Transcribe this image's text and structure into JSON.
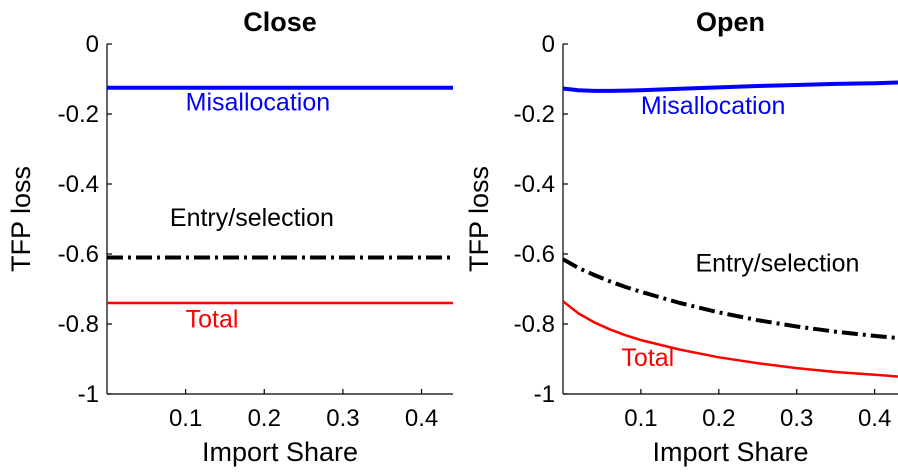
{
  "chart_data": [
    {
      "type": "line",
      "title": "Close",
      "xlabel": "Import Share",
      "ylabel": "TFP loss",
      "xlim": [
        0,
        0.44
      ],
      "ylim": [
        -1,
        0
      ],
      "x_ticks": [
        "0.1",
        "0.2",
        "0.3",
        "0.4"
      ],
      "y_ticks": [
        "0",
        "-0.2",
        "-0.4",
        "-0.6",
        "-0.8",
        "-1"
      ],
      "grid": false,
      "series": [
        {
          "name": "Misallocation",
          "color": "#0000ff",
          "style": "solid",
          "x": [
            0.0,
            0.44
          ],
          "y": [
            -0.125,
            -0.125
          ]
        },
        {
          "name": "Entry/selection",
          "color": "#000000",
          "style": "dashdot",
          "x": [
            0.0,
            0.44
          ],
          "y": [
            -0.61,
            -0.61
          ]
        },
        {
          "name": "Total",
          "color": "#ff0000",
          "style": "solid",
          "x": [
            0.0,
            0.44
          ],
          "y": [
            -0.74,
            -0.74
          ]
        }
      ],
      "annotations": [
        {
          "text": "Misallocation",
          "x": 0.1,
          "y": -0.19,
          "color": "#0000ff"
        },
        {
          "text": "Entry/selection",
          "x": 0.08,
          "y": -0.52,
          "color": "#000000"
        },
        {
          "text": "Total",
          "x": 0.1,
          "y": -0.81,
          "color": "#ff0000"
        }
      ]
    },
    {
      "type": "line",
      "title": "Open",
      "xlabel": "Import Share",
      "ylabel": "TFP loss",
      "xlim": [
        0,
        0.43
      ],
      "ylim": [
        -1,
        0
      ],
      "x_ticks": [
        "0.1",
        "0.2",
        "0.3",
        "0.4"
      ],
      "y_ticks": [
        "0",
        "-0.2",
        "-0.4",
        "-0.6",
        "-0.8",
        "-1"
      ],
      "grid": false,
      "series": [
        {
          "name": "Misallocation",
          "color": "#0000ff",
          "style": "solid",
          "x": [
            0.0,
            0.02,
            0.04,
            0.06,
            0.08,
            0.1,
            0.15,
            0.2,
            0.25,
            0.3,
            0.35,
            0.4,
            0.43
          ],
          "y": [
            -0.127,
            -0.132,
            -0.134,
            -0.134,
            -0.133,
            -0.132,
            -0.128,
            -0.124,
            -0.12,
            -0.117,
            -0.114,
            -0.112,
            -0.11
          ]
        },
        {
          "name": "Entry/selection",
          "color": "#000000",
          "style": "dashdot",
          "x": [
            0.0,
            0.02,
            0.04,
            0.06,
            0.08,
            0.1,
            0.15,
            0.2,
            0.25,
            0.3,
            0.35,
            0.4,
            0.43
          ],
          "y": [
            -0.615,
            -0.64,
            -0.66,
            -0.678,
            -0.694,
            -0.708,
            -0.74,
            -0.767,
            -0.789,
            -0.807,
            -0.822,
            -0.834,
            -0.84
          ]
        },
        {
          "name": "Total",
          "color": "#ff0000",
          "style": "solid",
          "x": [
            0.0,
            0.02,
            0.04,
            0.06,
            0.08,
            0.1,
            0.15,
            0.2,
            0.25,
            0.3,
            0.35,
            0.4,
            0.43
          ],
          "y": [
            -0.735,
            -0.77,
            -0.795,
            -0.815,
            -0.832,
            -0.846,
            -0.873,
            -0.895,
            -0.912,
            -0.926,
            -0.937,
            -0.945,
            -0.95
          ]
        }
      ],
      "annotations": [
        {
          "text": "Misallocation",
          "x": 0.1,
          "y": -0.2,
          "color": "#0000ff"
        },
        {
          "text": "Entry/selection",
          "x": 0.17,
          "y": -0.65,
          "color": "#000000"
        },
        {
          "text": "Total",
          "x": 0.075,
          "y": -0.92,
          "color": "#ff0000"
        }
      ]
    }
  ]
}
